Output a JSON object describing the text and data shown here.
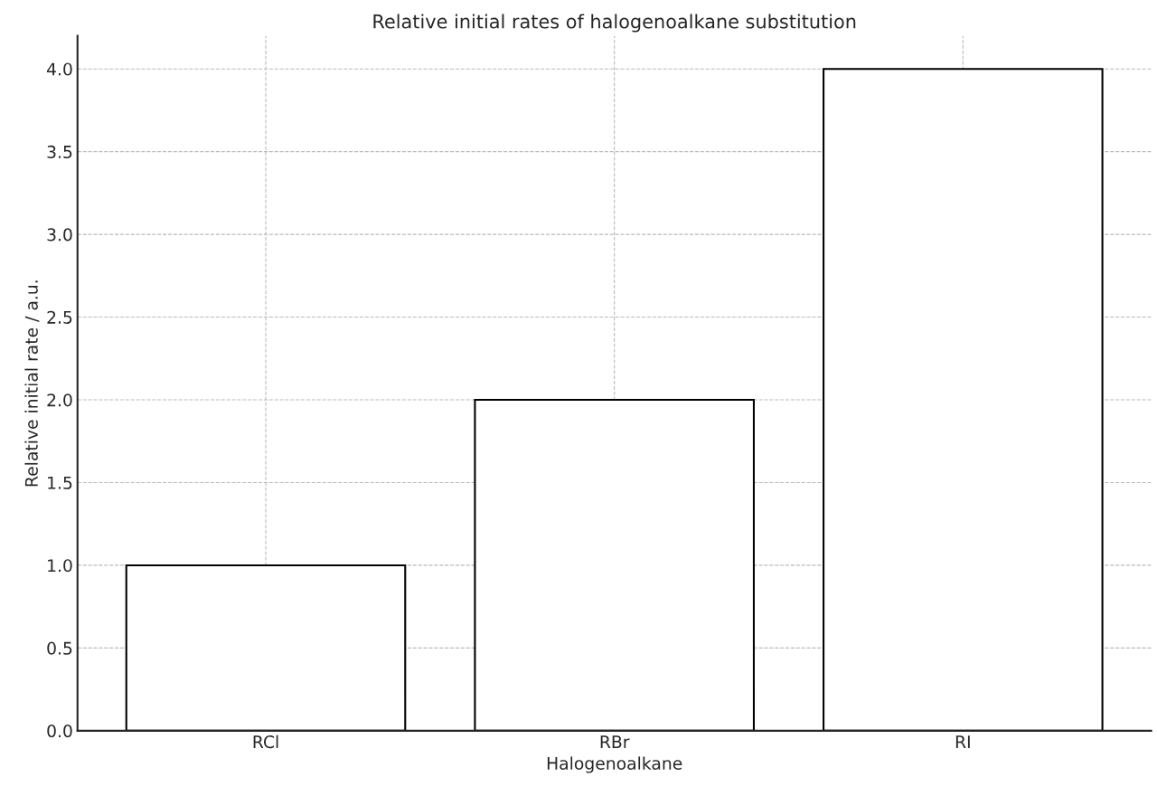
{
  "chart_data": {
    "type": "bar",
    "title": "Relative initial rates of halogenoalkane substitution",
    "xlabel": "Halogenoalkane",
    "ylabel": "Relative initial rate / a.u.",
    "categories": [
      "RCl",
      "RBr",
      "RI"
    ],
    "values": [
      1.0,
      2.0,
      4.0
    ],
    "color": "#ffffff",
    "ylim": [
      0,
      4.2
    ],
    "yticks": [
      {
        "value": 0,
        "label": "0.0"
      },
      {
        "value": 0.5,
        "label": "0.5"
      },
      {
        "value": 1,
        "label": "1.0"
      },
      {
        "value": 1.5,
        "label": "1.5"
      },
      {
        "value": 2,
        "label": "2.0"
      },
      {
        "value": 2.5,
        "label": "2.5"
      },
      {
        "value": 3,
        "label": "3.0"
      },
      {
        "value": 3.5,
        "label": "3.5"
      },
      {
        "value": 4,
        "label": "4.0"
      }
    ],
    "grid": true,
    "legend": false
  }
}
